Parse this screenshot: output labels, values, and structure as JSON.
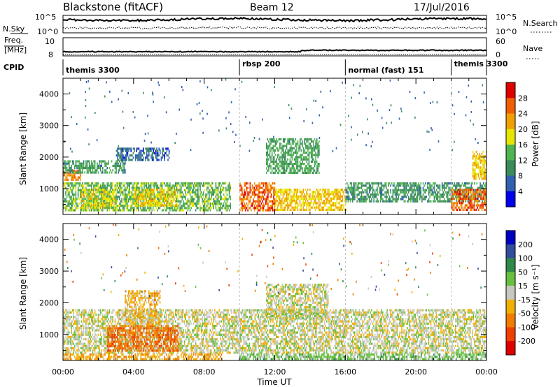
{
  "header": {
    "station": "Blackstone (fitACF)",
    "beam": "Beam 12",
    "date": "17/Jul/2016"
  },
  "status_panels": {
    "nsky_label": "N.Sky",
    "nsearch_label": "N.Search",
    "freq_label_top": "Freq.",
    "freq_label_unit": "[MHz]",
    "nave_label": "Nave",
    "cpid_label": "CPID",
    "left_ticks_noise": [
      "10^5",
      "10^0"
    ],
    "right_ticks_noise": [
      "10^5",
      "10^0"
    ],
    "left_ticks_freq": [
      "10",
      "8"
    ],
    "right_ticks_nave": [
      "60",
      "0"
    ],
    "cpid_segments": [
      {
        "label": "themis 3300",
        "start_hour": 0,
        "end_hour": 10
      },
      {
        "label": "rbsp 200",
        "start_hour": 10,
        "end_hour": 16
      },
      {
        "label": "normal (fast) 151",
        "start_hour": 16,
        "end_hour": 22
      },
      {
        "label": "themis 3300",
        "start_hour": 22,
        "end_hour": 24
      }
    ]
  },
  "colors": {
    "power_scale": [
      "#0000ee",
      "#3060b0",
      "#3c8c5a",
      "#50b450",
      "#e6e600",
      "#f0a000",
      "#f06000",
      "#e00000"
    ],
    "velocity_scale": [
      "#0000c0",
      "#304e9c",
      "#2f8a4a",
      "#68c040",
      "#c8c8c0",
      "#f0b000",
      "#f07c00",
      "#f04000",
      "#e00000"
    ]
  },
  "chart_data": [
    {
      "type": "heatmap",
      "title": "",
      "xlabel": "",
      "ylabel": "Slant Range [km]",
      "colorbar_label": "Power [dB]",
      "colorbar_ticks": [
        "4",
        "8",
        "12",
        "16",
        "20",
        "24",
        "28"
      ],
      "xlim": [
        0,
        24
      ],
      "ylim": [
        180,
        4500
      ],
      "y_ticks": [
        "1000",
        "2000",
        "3000",
        "4000"
      ],
      "x_ticks": [
        "00:00",
        "04:00",
        "08:00",
        "12:00",
        "16:00",
        "20:00",
        "00:00"
      ],
      "regions": [
        {
          "t_start": 0.0,
          "t_end": 9.5,
          "r_start": 300,
          "r_end": 1200,
          "power": 14
        },
        {
          "t_start": 0.0,
          "t_end": 1.0,
          "r_start": 1300,
          "r_end": 1600,
          "power": 24
        },
        {
          "t_start": 1.0,
          "t_end": 3.0,
          "r_start": 400,
          "r_end": 1000,
          "power": 18
        },
        {
          "t_start": 4.0,
          "t_end": 6.5,
          "r_start": 500,
          "r_end": 1000,
          "power": 20
        },
        {
          "t_start": 0.0,
          "t_end": 3.5,
          "r_start": 1500,
          "r_end": 1900,
          "power": 11
        },
        {
          "t_start": 3.0,
          "t_end": 6.0,
          "r_start": 1900,
          "r_end": 2300,
          "power": 7
        },
        {
          "t_start": 10.0,
          "t_end": 12.0,
          "r_start": 300,
          "r_end": 1200,
          "power": 26
        },
        {
          "t_start": 12.0,
          "t_end": 16.0,
          "r_start": 300,
          "r_end": 1000,
          "power": 20
        },
        {
          "t_start": 11.5,
          "t_end": 14.5,
          "r_start": 1500,
          "r_end": 2600,
          "power": 12
        },
        {
          "t_start": 16.0,
          "t_end": 24.0,
          "r_start": 600,
          "r_end": 1200,
          "power": 11
        },
        {
          "t_start": 22.0,
          "t_end": 24.0,
          "r_start": 300,
          "r_end": 1000,
          "power": 26
        },
        {
          "t_start": 23.2,
          "t_end": 24.0,
          "r_start": 1300,
          "r_end": 2200,
          "power": 20
        }
      ]
    },
    {
      "type": "heatmap",
      "title": "",
      "xlabel": "Time UT",
      "ylabel": "Slant Range [km]",
      "colorbar_label": "Velocity [m s⁻¹]",
      "colorbar_ticks": [
        "200",
        "100",
        "50",
        "15",
        "-15",
        "-50",
        "-100",
        "-200"
      ],
      "xlim": [
        0,
        24
      ],
      "ylim": [
        180,
        4500
      ],
      "y_ticks": [
        "1000",
        "2000",
        "3000",
        "4000"
      ],
      "x_ticks": [
        "00:00",
        "04:00",
        "08:00",
        "12:00",
        "16:00",
        "20:00",
        "00:00"
      ],
      "regions": [
        {
          "t_start": 0.0,
          "t_end": 24.0,
          "r_start": 400,
          "r_end": 1800,
          "velocity": 0
        },
        {
          "t_start": 2.5,
          "t_end": 6.5,
          "r_start": 500,
          "r_end": 1300,
          "velocity": -90
        },
        {
          "t_start": 3.5,
          "t_end": 5.5,
          "r_start": 1300,
          "r_end": 2400,
          "velocity": -30
        },
        {
          "t_start": 0.0,
          "t_end": 9.0,
          "r_start": 200,
          "r_end": 400,
          "velocity": -40
        },
        {
          "t_start": 10.0,
          "t_end": 24.0,
          "r_start": 200,
          "r_end": 400,
          "velocity": 30
        },
        {
          "t_start": 11.5,
          "t_end": 15.0,
          "r_start": 1500,
          "r_end": 2600,
          "velocity": 0
        }
      ]
    }
  ]
}
